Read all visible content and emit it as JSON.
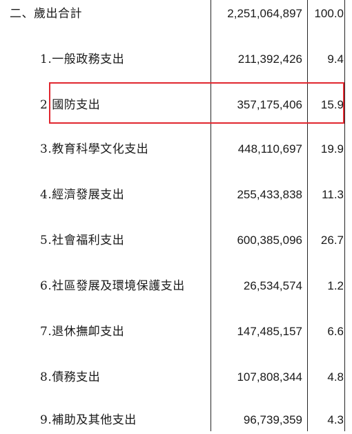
{
  "header": {
    "label": "二、歲出合計",
    "amount": "2,251,064,897",
    "percent": "100.0"
  },
  "rows": [
    {
      "label": "1.一般政務支出",
      "amount": "211,392,426",
      "percent": "9.4"
    },
    {
      "label": "2.國防支出",
      "amount": "357,175,406",
      "percent": "15.9"
    },
    {
      "label": "3.教育科學文化支出",
      "amount": "448,110,697",
      "percent": "19.9"
    },
    {
      "label": "4.經濟發展支出",
      "amount": "255,433,838",
      "percent": "11.3"
    },
    {
      "label": "5.社會福利支出",
      "amount": "600,385,096",
      "percent": "26.7"
    },
    {
      "label": "6.社區發展及環境保護支出",
      "amount": "26,534,574",
      "percent": "1.2"
    },
    {
      "label": "7.退休撫卹支出",
      "amount": "147,485,157",
      "percent": "6.6"
    },
    {
      "label": "8.債務支出",
      "amount": "107,808,344",
      "percent": "4.8"
    },
    {
      "label": "9.補助及其他支出",
      "amount": "96,739,359",
      "percent": "4.3"
    }
  ],
  "highlight": {
    "color": "#e0262e",
    "row_label": "2.國防支出"
  }
}
